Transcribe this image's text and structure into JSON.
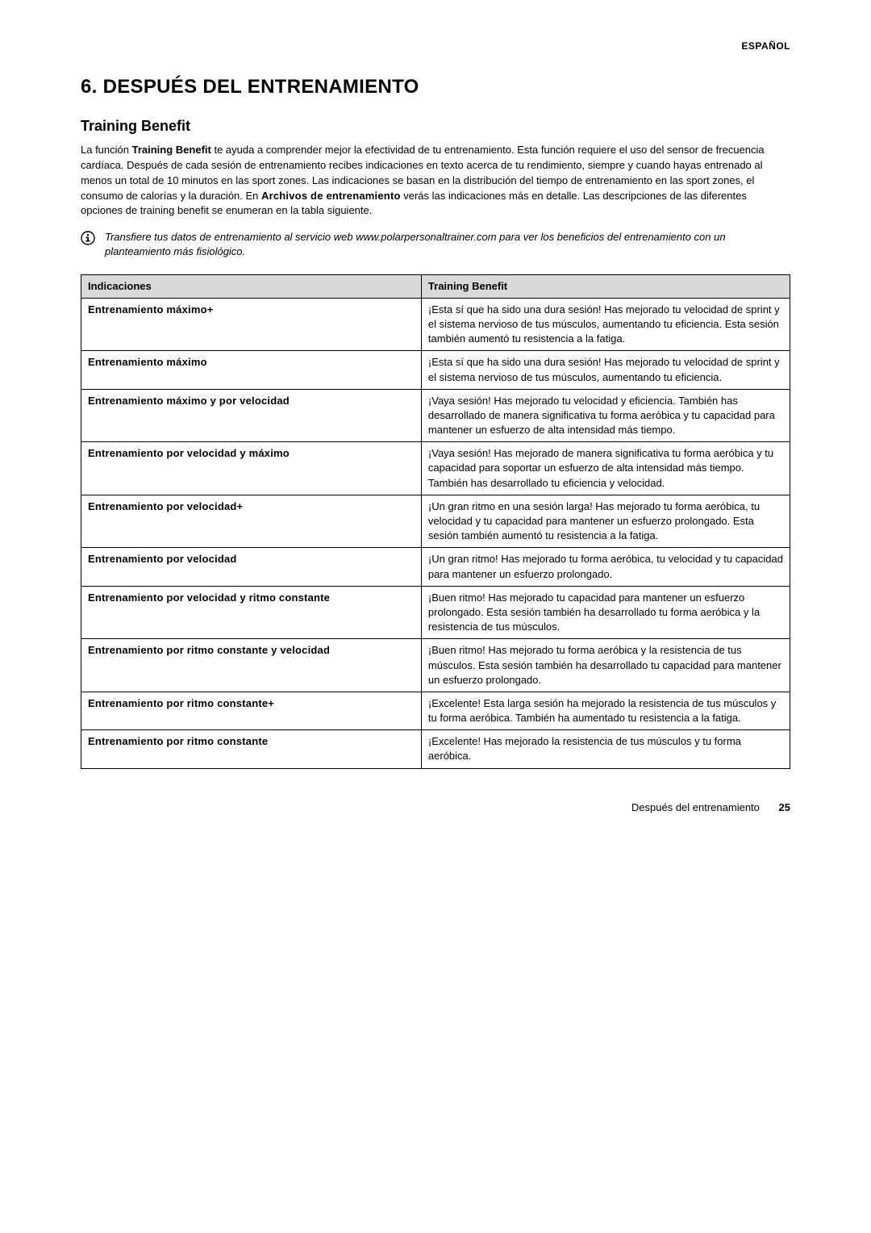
{
  "header": {
    "lang": "ESPAÑOL"
  },
  "title": "6. DESPUÉS DEL ENTRENAMIENTO",
  "section_heading": "Training Benefit",
  "intro": {
    "pre": "La función ",
    "bold1": "Training Benefit",
    "mid": " te ayuda a comprender mejor la efectividad de tu entrenamiento. Esta función requiere el uso del sensor de frecuencia cardíaca. Después de cada sesión de entrenamiento recibes indicaciones en texto acerca de tu rendimiento, siempre y cuando hayas entrenado al menos un total de 10 minutos en las sport zones. Las indicaciones se basan en la distribución del tiempo de entrenamiento en las sport zones, el consumo de calorías y la duración. En ",
    "cond": "Archivos de entrenamiento",
    "post": " verás las indicaciones más en detalle. Las descripciones de las diferentes opciones de training benefit se enumeran en la tabla siguiente."
  },
  "info_note": "Transfiere tus datos de entrenamiento al servicio web www.polarpersonaltrainer.com para ver los beneficios del entrenamiento con un planteamiento más fisiológico.",
  "table": {
    "head": {
      "c1": "Indicaciones",
      "c2": "Training Benefit"
    },
    "rows": [
      {
        "label": "Entrenamiento máximo+",
        "text": "¡Esta sí que ha sido una dura sesión! Has mejorado tu velocidad de sprint y el sistema nervioso de tus músculos, aumentando tu eficiencia. Esta sesión también aumentó tu resistencia a la fatiga."
      },
      {
        "label": "Entrenamiento máximo",
        "text": "¡Esta sí que ha sido una dura sesión! Has mejorado tu velocidad de sprint y el sistema nervioso de tus músculos, aumentando tu eficiencia."
      },
      {
        "label": "Entrenamiento máximo y por velocidad",
        "text": "¡Vaya sesión! Has mejorado tu velocidad y eficiencia. También has desarrollado de manera significativa tu forma aeróbica y tu capacidad para mantener un esfuerzo de alta intensidad más tiempo."
      },
      {
        "label": "Entrenamiento por velocidad y máximo",
        "text": "¡Vaya sesión! Has mejorado de manera significativa tu forma aeróbica y tu capacidad para soportar un esfuerzo de alta intensidad más tiempo. También has desarrollado tu eficiencia y velocidad."
      },
      {
        "label": "Entrenamiento por velocidad+",
        "text": "¡Un gran ritmo en una sesión larga! Has mejorado tu forma aeróbica, tu velocidad y tu capacidad para mantener un esfuerzo prolongado. Esta sesión también aumentó tu resistencia a la fatiga."
      },
      {
        "label": "Entrenamiento por velocidad",
        "text": "¡Un gran ritmo! Has mejorado tu forma aeróbica, tu velocidad y tu capacidad para mantener un esfuerzo prolongado."
      },
      {
        "label": "Entrenamiento por velocidad y ritmo constante",
        "text": "¡Buen ritmo! Has mejorado tu capacidad para mantener un esfuerzo prolongado. Esta sesión también ha desarrollado tu forma aeróbica y la resistencia de tus músculos."
      },
      {
        "label": "Entrenamiento por ritmo constante y velocidad",
        "text": "¡Buen ritmo! Has mejorado tu forma aeróbica y la resistencia de tus músculos. Esta sesión también ha desarrollado tu capacidad para mantener un esfuerzo prolongado."
      },
      {
        "label": "Entrenamiento por ritmo constante+",
        "text": "¡Excelente! Esta larga sesión ha mejorado la resistencia de tus músculos y tu forma aeróbica. También ha aumentado tu resistencia a la fatiga."
      },
      {
        "label": "Entrenamiento por ritmo constante",
        "text": "¡Excelente! Has mejorado la resistencia de tus músculos y tu forma aeróbica."
      }
    ]
  },
  "footer": {
    "text": "Después del entrenamiento",
    "page": "25"
  },
  "colors": {
    "page_bg": "#ffffff",
    "text": "#000000",
    "th_bg": "#d9d9d9",
    "border": "#000000",
    "icon_stroke": "#000000"
  }
}
